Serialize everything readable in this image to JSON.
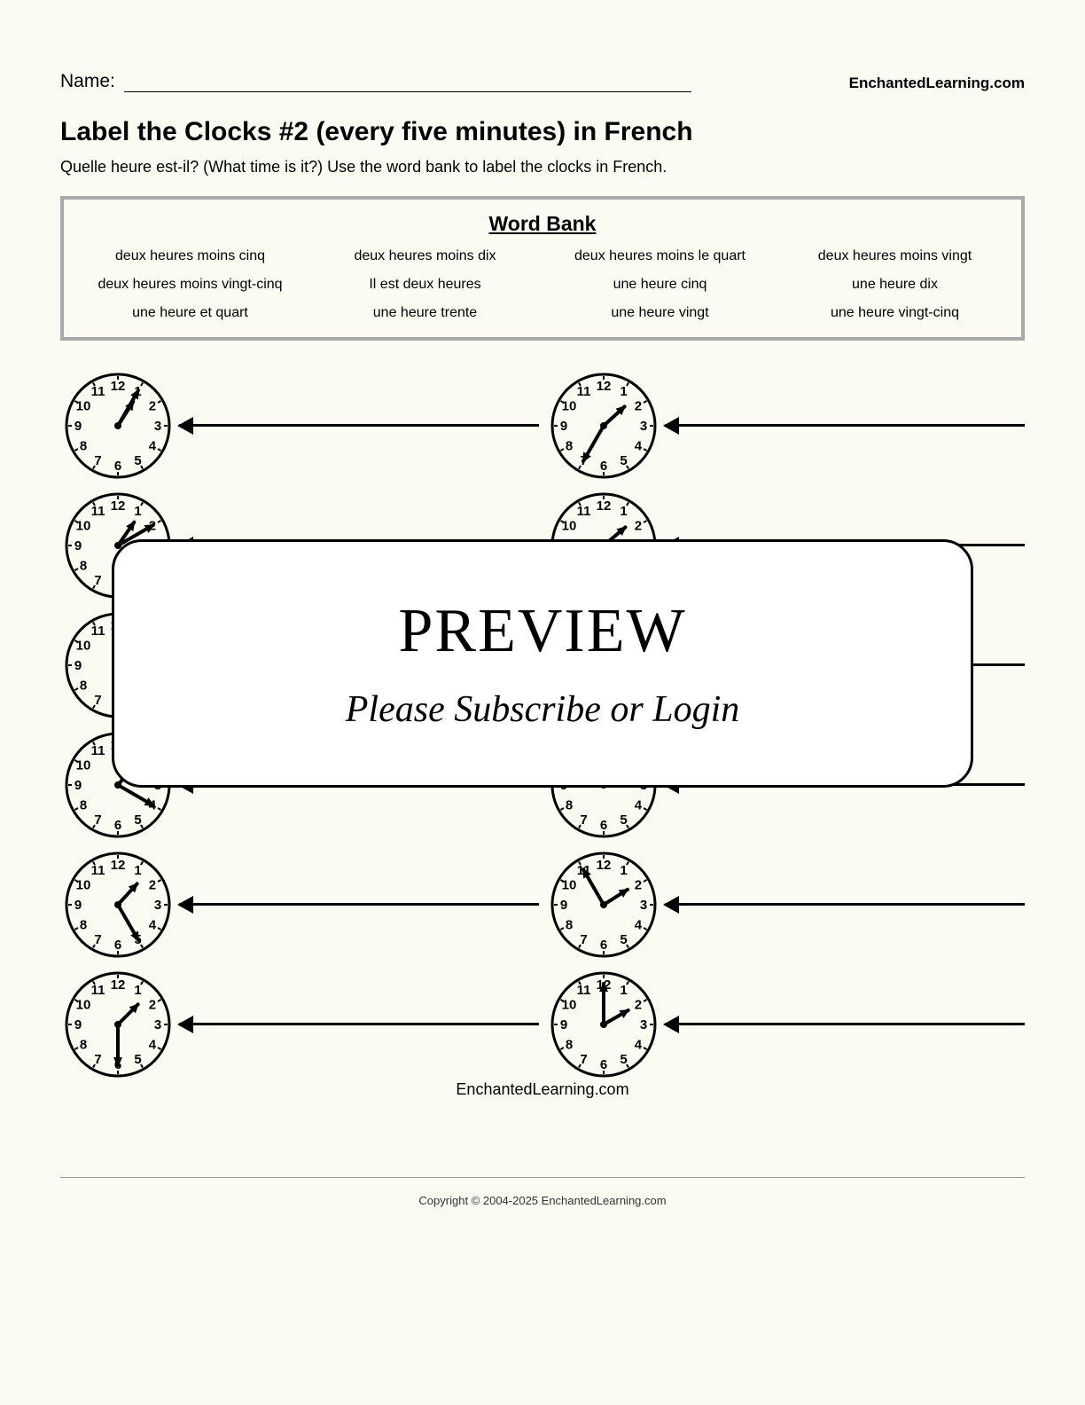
{
  "header": {
    "name_label": "Name:",
    "site": "EnchantedLearning.com"
  },
  "title": "Label the Clocks #2 (every five minutes) in French",
  "instructions": "Quelle heure est-il? (What time is it?) Use the word bank to label the clocks in French.",
  "wordbank": {
    "title": "Word Bank",
    "items": [
      "deux heures moins cinq",
      "deux heures moins dix",
      "deux heures moins le quart",
      "deux heures moins vingt",
      "deux heures moins vingt-cinq",
      "Il est deux heures",
      "une heure cinq",
      "une heure dix",
      "une heure et quart",
      "une heure trente",
      "une heure vingt",
      "une heure vingt-cinq"
    ]
  },
  "clocks": [
    {
      "hour": 1,
      "minute": 5
    },
    {
      "hour": 1,
      "minute": 35
    },
    {
      "hour": 1,
      "minute": 10
    },
    {
      "hour": 1,
      "minute": 40
    },
    {
      "hour": 1,
      "minute": 15
    },
    {
      "hour": 1,
      "minute": 45
    },
    {
      "hour": 1,
      "minute": 20
    },
    {
      "hour": 1,
      "minute": 50
    },
    {
      "hour": 1,
      "minute": 25
    },
    {
      "hour": 1,
      "minute": 55
    },
    {
      "hour": 1,
      "minute": 30
    },
    {
      "hour": 2,
      "minute": 0
    }
  ],
  "clock_style": {
    "face_stroke": "#000",
    "face_fill": "#fcfbf3",
    "number_font_size": 15,
    "hour_hand_length": 32,
    "minute_hand_length": 46,
    "hand_stroke_width": 4,
    "radius": 58
  },
  "footer_site": "EnchantedLearning.com",
  "copyright": "Copyright © 2004-2025 EnchantedLearning.com",
  "overlay": {
    "title": "PREVIEW",
    "subtitle": "Please Subscribe or Login"
  }
}
